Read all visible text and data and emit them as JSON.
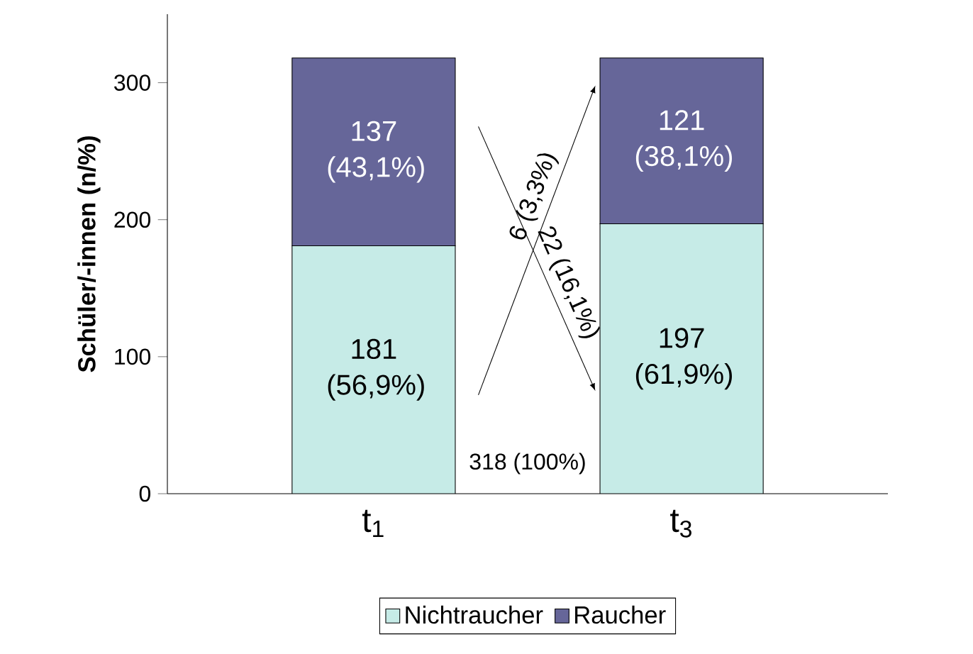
{
  "chart_data": {
    "type": "bar",
    "stacked": true,
    "categories": [
      "t$_{1}$",
      "t$_{3}$"
    ],
    "series": [
      {
        "name": "Nichtraucher",
        "color": "#c6ebe7",
        "values": [
          181,
          197
        ],
        "value_labels": [
          "181 (56,9%)",
          "197 (61,9%)"
        ]
      },
      {
        "name": "Raucher",
        "color": "#666699",
        "values": [
          137,
          121
        ],
        "value_labels": [
          "137 (43,1%)",
          "121 (38,1%)"
        ]
      }
    ],
    "ylabel": "Schüler/-innen (n/%)",
    "ylim": [
      0,
      350
    ],
    "yticks": [
      0,
      100,
      200,
      300
    ],
    "annotations": [
      "6 (3,3%)",
      "22 (16,1%)",
      "318 (100%)"
    ],
    "legend": "bottom",
    "grid": false
  }
}
